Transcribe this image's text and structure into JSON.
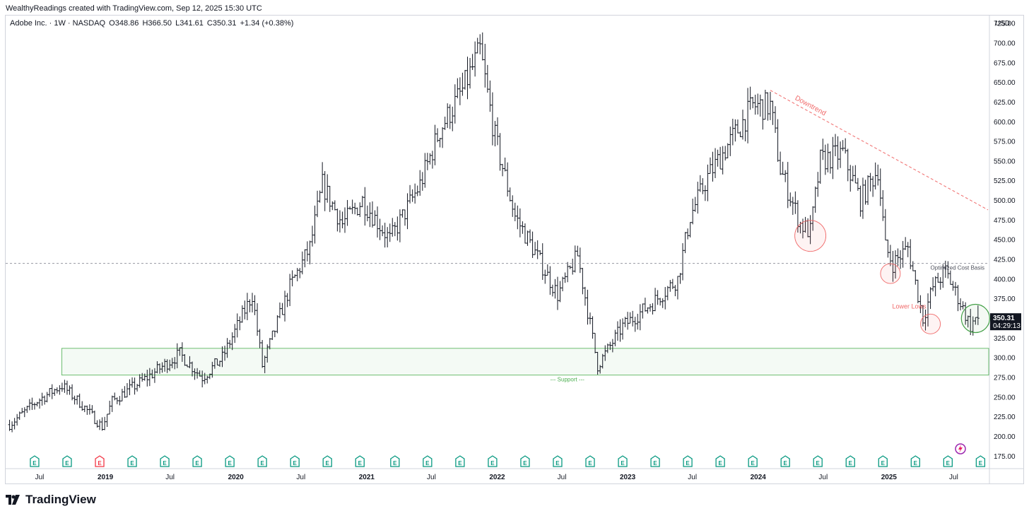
{
  "header": {
    "attribution": "WealthyReadings created with TradingView.com, Sep 12, 2025 15:30 UTC",
    "symbol": "Adobe Inc. · 1W · NASDAQ",
    "open": "O348.86",
    "high": "H366.50",
    "low": "L341.61",
    "close": "C350.31",
    "change": "+1.34 (+0.38%)",
    "currency": "USD"
  },
  "footer": {
    "brand": "TradingView"
  },
  "price_label": {
    "value": "350.31",
    "countdown": "04:29:13"
  },
  "colors": {
    "bars": "#131722",
    "support_zone": "#4caf50",
    "downtrend": "#f06a6a",
    "circle_red": "#f06a6a",
    "circle_green": "#43a047",
    "earnings": "#089981",
    "earnings_alt": "#f23645"
  },
  "chart_data": {
    "type": "ohlc",
    "title": "Adobe Inc. · 1W · NASDAQ",
    "x_ticks": [
      "Jul",
      "2019",
      "Jul",
      "2020",
      "Jul",
      "2021",
      "Jul",
      "2022",
      "Jul",
      "2023",
      "Jul",
      "2024",
      "Jul",
      "2025",
      "Jul"
    ],
    "year_ticks": [
      "2019",
      "2020",
      "2021",
      "2022",
      "2023",
      "2024",
      "2025"
    ],
    "y_ticks": [
      175,
      200,
      225,
      250,
      275,
      300,
      325,
      350,
      375,
      400,
      425,
      450,
      475,
      500,
      525,
      550,
      575,
      600,
      625,
      650,
      675,
      700,
      725
    ],
    "ylim": [
      160,
      735
    ],
    "xlim": [
      "2018-04-01",
      "2025-10-05"
    ],
    "anchors": [
      [
        "2018-04-08",
        215
      ],
      [
        "2018-06-24",
        245
      ],
      [
        "2018-09-01",
        265
      ],
      [
        "2018-10-28",
        240
      ],
      [
        "2018-12-23",
        212
      ],
      [
        "2019-01-20",
        245
      ],
      [
        "2019-04-28",
        275
      ],
      [
        "2019-07-28",
        305
      ],
      [
        "2019-09-29",
        275
      ],
      [
        "2019-11-24",
        300
      ],
      [
        "2020-02-16",
        380
      ],
      [
        "2020-03-15",
        290
      ],
      [
        "2020-05-31",
        390
      ],
      [
        "2020-07-26",
        440
      ],
      [
        "2020-08-30",
        520
      ],
      [
        "2020-10-25",
        470
      ],
      [
        "2020-12-20",
        500
      ],
      [
        "2021-03-07",
        450
      ],
      [
        "2021-05-30",
        520
      ],
      [
        "2021-07-25",
        590
      ],
      [
        "2021-09-26",
        640
      ],
      [
        "2021-11-14",
        690
      ],
      [
        "2021-12-26",
        580
      ],
      [
        "2022-02-20",
        480
      ],
      [
        "2022-04-10",
        440
      ],
      [
        "2022-06-19",
        380
      ],
      [
        "2022-08-14",
        430
      ],
      [
        "2022-10-09",
        290
      ],
      [
        "2022-12-18",
        340
      ],
      [
        "2023-03-12",
        370
      ],
      [
        "2023-05-21",
        400
      ],
      [
        "2023-06-25",
        480
      ],
      [
        "2023-08-13",
        530
      ],
      [
        "2023-10-08",
        570
      ],
      [
        "2023-12-17",
        620
      ],
      [
        "2024-02-04",
        620
      ],
      [
        "2024-03-03",
        540
      ],
      [
        "2024-04-28",
        470
      ],
      [
        "2024-05-26",
        460
      ],
      [
        "2024-06-23",
        550
      ],
      [
        "2024-08-25",
        560
      ],
      [
        "2024-10-13",
        500
      ],
      [
        "2024-12-01",
        540
      ],
      [
        "2024-12-22",
        440
      ],
      [
        "2025-01-12",
        420
      ],
      [
        "2025-02-23",
        440
      ],
      [
        "2025-04-06",
        350
      ],
      [
        "2025-05-04",
        390
      ],
      [
        "2025-06-08",
        410
      ],
      [
        "2025-07-20",
        370
      ],
      [
        "2025-08-17",
        340
      ],
      [
        "2025-09-07",
        355
      ]
    ],
    "last_bar": {
      "date": "2025-09-07",
      "open": 348.86,
      "high": 366.5,
      "low": 341.61,
      "close": 350.31
    },
    "annotations": {
      "optimized_cost_basis": {
        "price": 420,
        "label": "Optimized Cost Basis"
      },
      "support_zone": {
        "from": 278,
        "to": 312,
        "start": "2018-09-01",
        "label": "--- Support ---"
      },
      "downtrend": {
        "from": [
          "2024-02-04",
          640
        ],
        "to": [
          "2025-10-05",
          488
        ],
        "label": "Downtrend"
      },
      "lower_lows_label": "Lower Lows",
      "circles": [
        {
          "date": "2024-05-26",
          "price": 455,
          "color": "red"
        },
        {
          "date": "2025-01-05",
          "price": 407,
          "color": "red"
        },
        {
          "date": "2025-04-27",
          "price": 343,
          "color": "red"
        },
        {
          "date": "2025-08-31",
          "price": 350,
          "color": "green"
        }
      ]
    },
    "earnings": [
      "2018-06-17",
      "2018-09-16",
      "2018-12-16",
      "2019-03-17",
      "2019-06-16",
      "2019-09-15",
      "2019-12-15",
      "2020-03-15",
      "2020-06-14",
      "2020-09-13",
      "2020-12-13",
      "2021-03-21",
      "2021-06-20",
      "2021-09-19",
      "2021-12-19",
      "2022-03-20",
      "2022-06-19",
      "2022-09-18",
      "2022-12-18",
      "2023-03-19",
      "2023-06-18",
      "2023-09-17",
      "2023-12-17",
      "2024-03-17",
      "2024-06-16",
      "2024-09-15",
      "2024-12-15",
      "2025-03-16",
      "2025-06-15",
      "2025-09-14"
    ],
    "earnings_miss": [
      "2018-12-16"
    ],
    "grid": false,
    "legend": "none"
  }
}
